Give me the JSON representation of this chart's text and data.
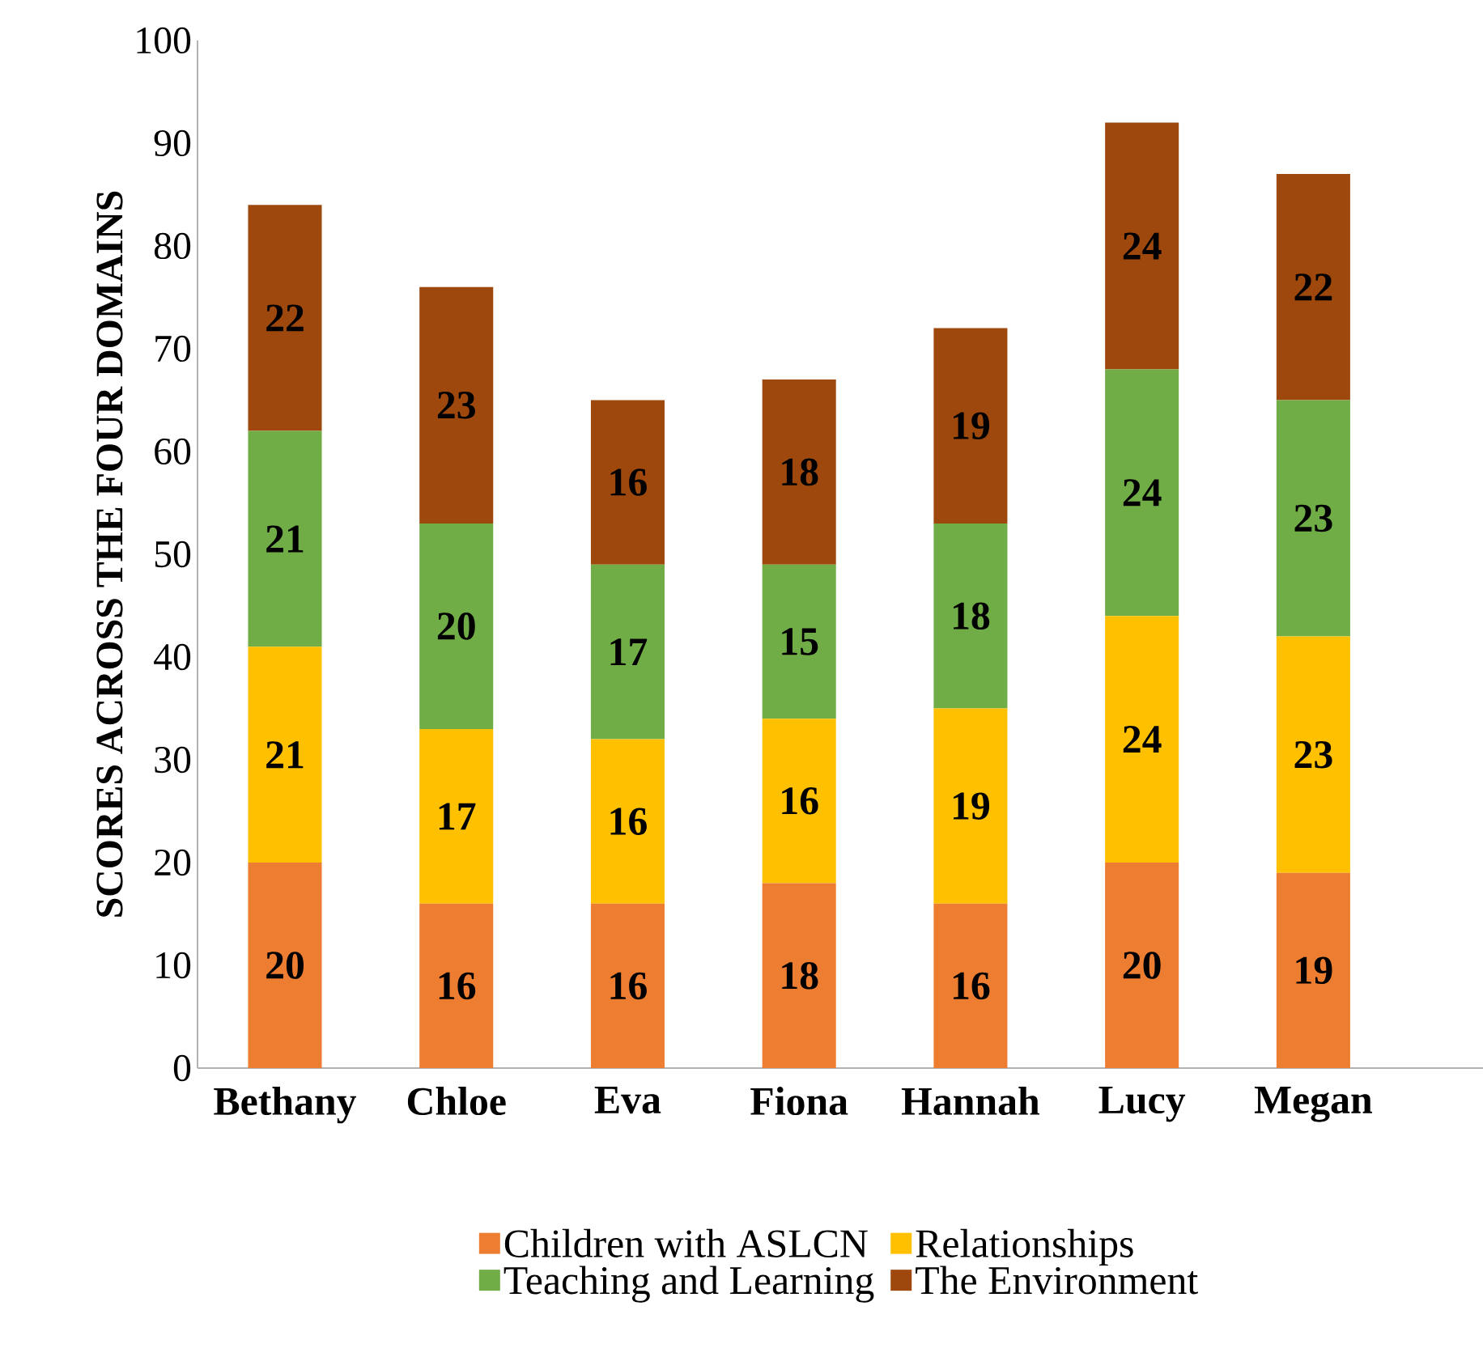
{
  "chart_data": {
    "type": "bar",
    "stacked": true,
    "ylabel": "SCORES ACROSS THE FOUR DOMAINS",
    "categories": [
      "Bethany",
      "Chloe",
      "Eva",
      "Fiona",
      "Hannah",
      "Lucy",
      "Megan"
    ],
    "series": [
      {
        "name": "Children with ASLCN",
        "color": "#ed7d31",
        "values": [
          20,
          16,
          16,
          18,
          16,
          20,
          19
        ]
      },
      {
        "name": "Relationships",
        "color": "#ffc000",
        "values": [
          21,
          17,
          16,
          16,
          19,
          24,
          23
        ]
      },
      {
        "name": "Teaching and Learning",
        "color": "#70ad47",
        "values": [
          21,
          20,
          17,
          15,
          18,
          24,
          23
        ]
      },
      {
        "name": "The Environment",
        "color": "#9e480e",
        "values": [
          22,
          23,
          16,
          18,
          19,
          24,
          22
        ]
      }
    ],
    "ylim": [
      0,
      100
    ],
    "yticks": [
      0,
      10,
      20,
      30,
      40,
      50,
      60,
      70,
      80,
      90,
      100
    ],
    "data_labels": true,
    "legend": "bottom",
    "grid": false
  }
}
